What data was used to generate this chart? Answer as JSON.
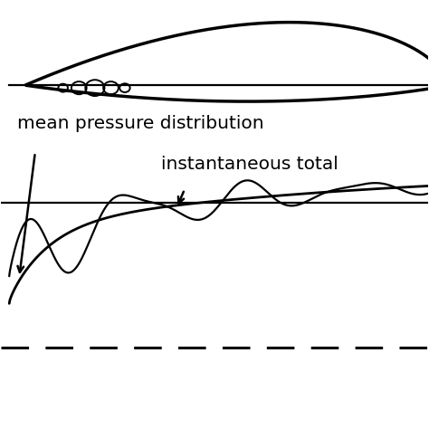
{
  "bg_color": "#ffffff",
  "line_color": "#000000",
  "figsize": [
    4.74,
    4.74
  ],
  "dpi": 100,
  "label_mean": "mean pressure distribution",
  "label_instant": "instantaneous total",
  "xlim": [
    -0.02,
    1.05
  ],
  "ylim": [
    -0.72,
    0.55
  ]
}
